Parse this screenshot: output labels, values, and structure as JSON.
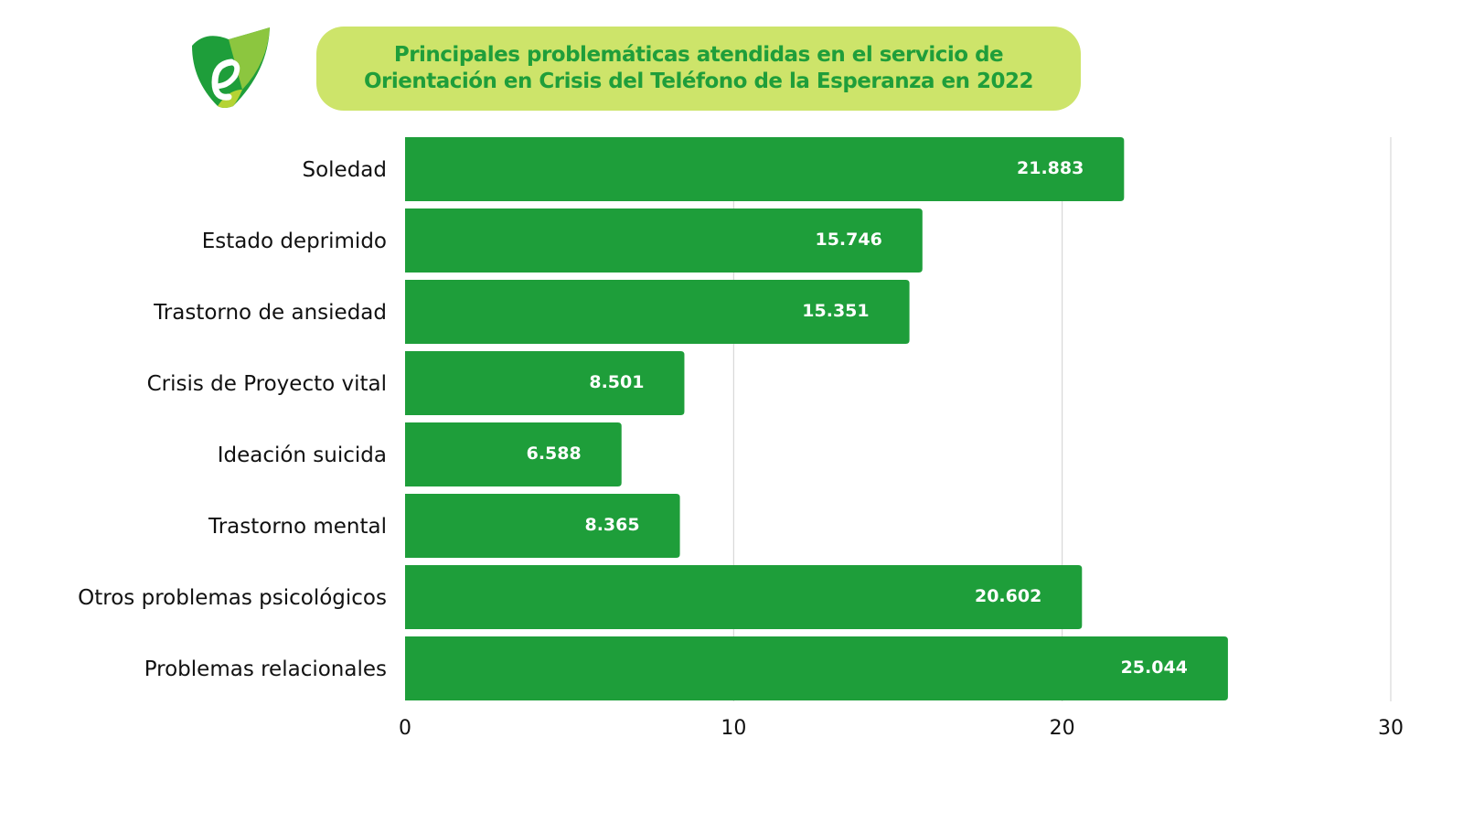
{
  "title_lines": [
    "Principales problemáticas atendidas en el servicio de",
    "Orientación en Crisis del Teléfono de la Esperanza en 2022"
  ],
  "colors": {
    "bar": "#1e9e3a",
    "title_bg": "#cde46a",
    "title_text": "#1f9e3a",
    "grid": "#d0d0d0"
  },
  "chart_data": {
    "type": "bar",
    "orientation": "horizontal",
    "title": "Principales problemáticas atendidas en el servicio de Orientación en Crisis del Teléfono de la Esperanza en 2022",
    "categories": [
      "Soledad",
      "Estado deprimido",
      "Trastorno de ansiedad",
      "Crisis de Proyecto vital",
      "Ideación suicida",
      "Trastorno mental",
      "Otros problemas psicológicos ",
      "Problemas relacionales"
    ],
    "values": [
      21.883,
      15.746,
      15.351,
      8.501,
      6.588,
      8.365,
      20.602,
      25.044
    ],
    "value_labels": [
      "21.883",
      "15.746",
      "15.351",
      "8.501",
      "6.588",
      "8.365",
      "20.602",
      "25.044"
    ],
    "xlim": [
      0,
      30
    ],
    "xticks": [
      "0",
      "10",
      "20",
      "30"
    ],
    "grid": "vertical",
    "xlabel": "",
    "ylabel": ""
  }
}
